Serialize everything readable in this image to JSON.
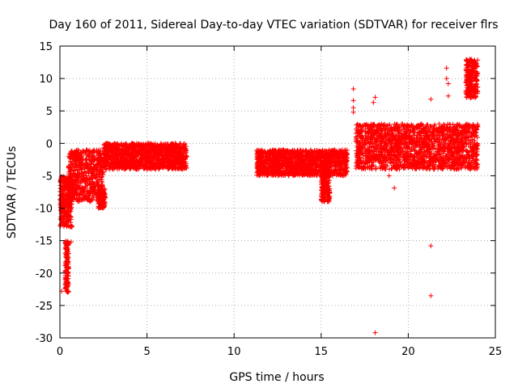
{
  "chart_data": {
    "type": "scatter",
    "title": "Day 160 of 2011, Sidereal Day-to-day VTEC variation (SDTVAR) for receiver flrs",
    "xlabel": "GPS time / hours",
    "ylabel": "SDTVAR / TECUs",
    "xlim": [
      0,
      25
    ],
    "ylim": [
      -30,
      15
    ],
    "xticks": [
      0,
      5,
      10,
      15,
      20,
      25
    ],
    "yticks": [
      -30,
      -25,
      -20,
      -15,
      -10,
      -5,
      0,
      5,
      10,
      15
    ],
    "grid": true,
    "marker": "+",
    "color": "#ff0000",
    "series": [
      {
        "name": "SDTVAR",
        "description_segments": [
          {
            "x": [
              0.0,
              0.7
            ],
            "y_band": [
              -13,
              -5
            ]
          },
          {
            "x": [
              0.3,
              0.5
            ],
            "y_band": [
              -23,
              -15
            ]
          },
          {
            "x": [
              0.5,
              2.5
            ],
            "y_band": [
              -9,
              -1
            ]
          },
          {
            "x": [
              2.2,
              2.6
            ],
            "y_band": [
              -10,
              -7
            ]
          },
          {
            "x": [
              2.5,
              7.3
            ],
            "y_band": [
              -4,
              0
            ]
          },
          {
            "x": [
              11.3,
              16.5
            ],
            "y_band": [
              -5,
              -1
            ]
          },
          {
            "x": [
              15.0,
              15.5
            ],
            "y_band": [
              -9,
              -4
            ]
          },
          {
            "x": [
              17.0,
              24.0
            ],
            "y_band": [
              -4,
              3
            ]
          },
          {
            "x": [
              23.3,
              24.0
            ],
            "y_band": [
              7,
              13
            ]
          }
        ],
        "outliers": [
          {
            "x": 0.1,
            "y": -22.8
          },
          {
            "x": 0.5,
            "y": -15.3
          },
          {
            "x": 0.65,
            "y": -15.2
          },
          {
            "x": 15.0,
            "y": -8.6
          },
          {
            "x": 16.85,
            "y": 8.4
          },
          {
            "x": 16.85,
            "y": 6.6
          },
          {
            "x": 16.85,
            "y": 5.5
          },
          {
            "x": 16.85,
            "y": 4.8
          },
          {
            "x": 18.1,
            "y": 7.1
          },
          {
            "x": 18.0,
            "y": 6.3
          },
          {
            "x": 18.1,
            "y": -29.2
          },
          {
            "x": 18.9,
            "y": -5.0
          },
          {
            "x": 19.2,
            "y": -6.9
          },
          {
            "x": 19.9,
            "y": 1.8
          },
          {
            "x": 21.3,
            "y": 6.8
          },
          {
            "x": 21.3,
            "y": -15.8
          },
          {
            "x": 21.3,
            "y": -23.5
          },
          {
            "x": 22.2,
            "y": 11.6
          },
          {
            "x": 22.3,
            "y": 7.3
          },
          {
            "x": 22.2,
            "y": 10.0
          },
          {
            "x": 22.3,
            "y": 9.2
          }
        ]
      }
    ]
  }
}
